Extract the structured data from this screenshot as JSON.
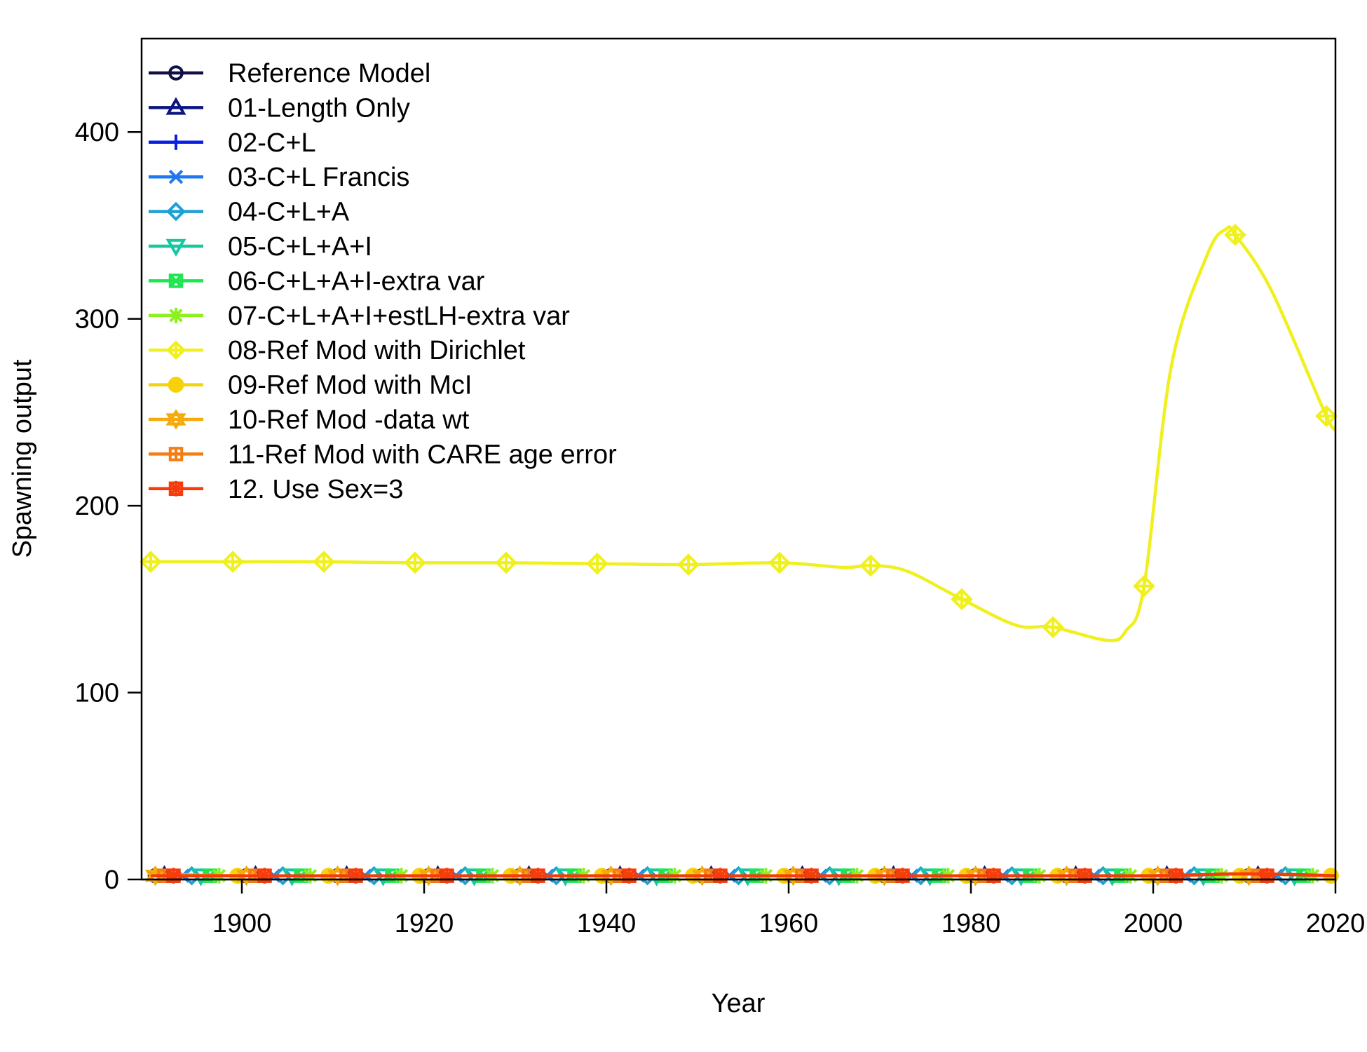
{
  "chart_data": {
    "type": "line",
    "xlabel": "Year",
    "ylabel": "Spawning output",
    "xlim": [
      1889,
      2020
    ],
    "ylim": [
      0,
      450
    ],
    "x_ticks": [
      1900,
      1920,
      1940,
      1960,
      1980,
      2000,
      2020
    ],
    "y_ticks": [
      0,
      100,
      200,
      300,
      400
    ],
    "legend_position": "top-left",
    "grid": false,
    "series": [
      {
        "name": "Reference Model",
        "color": "#101045",
        "marker": "circle",
        "x": [
          1890,
          1900,
          1920,
          1940,
          1960,
          1980,
          2000,
          2010,
          2020
        ],
        "y": [
          2,
          2,
          2,
          2,
          2,
          2,
          2,
          3,
          2
        ]
      },
      {
        "name": "01-Length Only",
        "color": "#0b1580",
        "marker": "triangle",
        "x": [
          1890,
          1900,
          1920,
          1940,
          1960,
          1980,
          2000,
          2010,
          2020
        ],
        "y": [
          2,
          2,
          2,
          2,
          2,
          2,
          2,
          3,
          2
        ]
      },
      {
        "name": "02-C+L",
        "color": "#0a1ee6",
        "marker": "plus",
        "x": [
          1890,
          1900,
          1920,
          1940,
          1960,
          1980,
          2000,
          2010,
          2020
        ],
        "y": [
          2,
          2,
          2,
          2,
          2,
          2,
          2,
          3,
          2
        ]
      },
      {
        "name": "03-C+L Francis",
        "color": "#1e78f0",
        "marker": "x",
        "x": [
          1890,
          1900,
          1920,
          1940,
          1960,
          1980,
          2000,
          2010,
          2020
        ],
        "y": [
          2,
          2,
          2,
          2,
          2,
          2,
          2,
          3,
          2
        ]
      },
      {
        "name": "04-C+L+A",
        "color": "#1ea0d7",
        "marker": "diamond",
        "x": [
          1890,
          1900,
          1920,
          1940,
          1960,
          1980,
          2000,
          2010,
          2020
        ],
        "y": [
          2,
          2,
          2,
          2,
          2,
          2,
          2,
          3,
          2
        ]
      },
      {
        "name": "05-C+L+A+I",
        "color": "#14c8a0",
        "marker": "triangle-down",
        "x": [
          1890,
          1900,
          1920,
          1940,
          1960,
          1980,
          2000,
          2010,
          2020
        ],
        "y": [
          2,
          2,
          2,
          2,
          2,
          2,
          2,
          3,
          2
        ]
      },
      {
        "name": "06-C+L+A+I-extra var",
        "color": "#1ee650",
        "marker": "square-x",
        "x": [
          1890,
          1900,
          1920,
          1940,
          1960,
          1980,
          2000,
          2010,
          2020
        ],
        "y": [
          2,
          2,
          2,
          2,
          2,
          2,
          2,
          3,
          2
        ]
      },
      {
        "name": "07-C+L+A+I+estLH-extra var",
        "color": "#8cf01e",
        "marker": "asterisk",
        "x": [
          1890,
          1900,
          1920,
          1940,
          1960,
          1980,
          2000,
          2010,
          2020
        ],
        "y": [
          2,
          2,
          2,
          2,
          2,
          2,
          2,
          3,
          2
        ]
      },
      {
        "name": "08-Ref Mod with Dirichlet",
        "color": "#f0f01e",
        "marker": "diamond-plus",
        "x": [
          1890,
          1899,
          1909,
          1919,
          1929,
          1939,
          1949,
          1959,
          1966,
          1969,
          1973,
          1979,
          1985,
          1989,
          1995,
          1997,
          1999,
          2002,
          2006,
          2008,
          2009,
          2013,
          2019,
          2020
        ],
        "y": [
          170,
          170,
          170,
          169.5,
          169.5,
          169,
          168.5,
          169.5,
          167,
          168,
          165,
          150,
          136,
          135,
          128,
          133,
          157,
          275,
          335,
          348,
          345,
          315,
          248,
          242
        ]
      },
      {
        "name": "09-Ref Mod with McI",
        "color": "#f5d20a",
        "marker": "filled-circle",
        "x": [
          1890,
          1900,
          1920,
          1940,
          1960,
          1980,
          2000,
          2010,
          2020
        ],
        "y": [
          2,
          2,
          2,
          2,
          2,
          2,
          2,
          3,
          2
        ]
      },
      {
        "name": "10-Ref Mod -data wt",
        "color": "#f5aa0a",
        "marker": "star",
        "x": [
          1890,
          1900,
          1920,
          1940,
          1960,
          1980,
          2000,
          2010,
          2020
        ],
        "y": [
          3,
          2,
          2,
          2,
          2,
          2,
          2,
          3,
          2
        ]
      },
      {
        "name": "11-Ref Mod with CARE age error",
        "color": "#f57d14",
        "marker": "square-plus",
        "x": [
          1890,
          1900,
          1920,
          1940,
          1960,
          1980,
          2000,
          2010,
          2020
        ],
        "y": [
          2,
          2,
          2,
          2,
          2,
          2,
          2,
          3,
          2
        ]
      },
      {
        "name": "12. Use Sex=3",
        "color": "#f53c0a",
        "marker": "square-star",
        "x": [
          1890,
          1900,
          1920,
          1940,
          1960,
          1980,
          2000,
          2010,
          2020
        ],
        "y": [
          2,
          2,
          2,
          2,
          2,
          2,
          2,
          3,
          2
        ]
      }
    ]
  }
}
